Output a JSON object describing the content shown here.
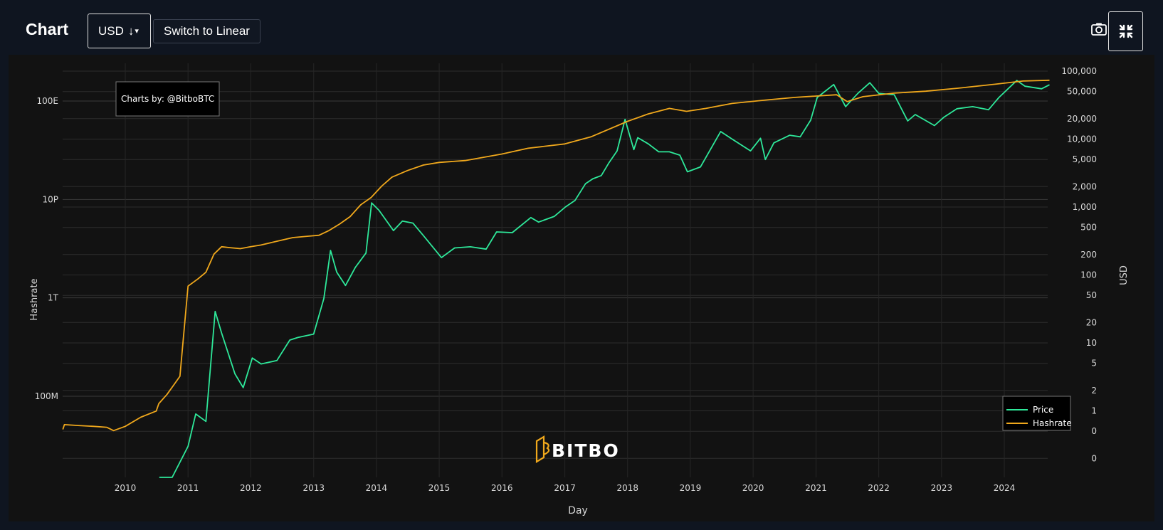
{
  "header": {
    "title": "Chart",
    "currency": "USD",
    "switch_label": "Switch to Linear"
  },
  "icons": {
    "currency_sort": "sort-down-arrow-icon",
    "dropdown": "chevron-down-icon",
    "camera": "camera-icon",
    "fullscreen": "collapse-icon"
  },
  "chart_data": {
    "type": "line",
    "title": "",
    "xlabel": "Day",
    "ylabel_left": "Hashrate",
    "ylabel_right": "USD",
    "y_left_scale": "log",
    "y_right_scale": "log",
    "x_ticks": [
      "2010",
      "2011",
      "2012",
      "2013",
      "2014",
      "2015",
      "2016",
      "2017",
      "2018",
      "2019",
      "2020",
      "2021",
      "2022",
      "2023",
      "2024"
    ],
    "y_left_ticks": [
      "100E",
      "10P",
      "1T",
      "100M"
    ],
    "y_right_ticks": [
      "100,000",
      "50,000",
      "20,000",
      "10,000",
      "5,000",
      "2,000",
      "1,000",
      "500",
      "200",
      "100",
      "50",
      "20",
      "10",
      "5",
      "2",
      "1",
      "0",
      "0"
    ],
    "annotation": "Charts by: @BitboBTC",
    "watermark": "BITBO",
    "legend_position": "bottom-right",
    "grid": true,
    "colors": {
      "price": "#2ee89a",
      "hashrate": "#f0a81c",
      "background": "#121212"
    },
    "series": [
      {
        "name": "Price",
        "axis": "right",
        "x": [
          "2010-07-18",
          "2010-10-01",
          "2011-01-01",
          "2011-02-15",
          "2011-04-15",
          "2011-06-08",
          "2011-07-15",
          "2011-10-01",
          "2011-11-18",
          "2012-01-10",
          "2012-03-01",
          "2012-06-01",
          "2012-08-15",
          "2012-10-01",
          "2013-01-01",
          "2013-03-01",
          "2013-04-09",
          "2013-05-15",
          "2013-07-05",
          "2013-09-01",
          "2013-11-01",
          "2013-12-04",
          "2014-01-15",
          "2014-04-10",
          "2014-06-01",
          "2014-08-01",
          "2014-10-01",
          "2015-01-14",
          "2015-04-01",
          "2015-07-01",
          "2015-10-01",
          "2015-12-01",
          "2016-03-01",
          "2016-06-17",
          "2016-08-01",
          "2016-11-01",
          "2017-01-04",
          "2017-03-01",
          "2017-05-01",
          "2017-06-12",
          "2017-08-01",
          "2017-09-15",
          "2017-11-01",
          "2017-12-17",
          "2018-02-06",
          "2018-03-01",
          "2018-05-01",
          "2018-07-01",
          "2018-09-01",
          "2018-11-01",
          "2018-12-15",
          "2019-03-01",
          "2019-06-26",
          "2019-09-01",
          "2019-12-17",
          "2020-02-13",
          "2020-03-12",
          "2020-05-01",
          "2020-08-01",
          "2020-10-01",
          "2020-12-01",
          "2021-01-08",
          "2021-04-14",
          "2021-06-22",
          "2021-09-01",
          "2021-11-10",
          "2022-01-01",
          "2022-04-01",
          "2022-06-18",
          "2022-08-01",
          "2022-11-21",
          "2023-01-15",
          "2023-04-01",
          "2023-07-01",
          "2023-10-01",
          "2023-12-01",
          "2024-03-14",
          "2024-05-01",
          "2024-08-05",
          "2024-09-20"
        ],
        "values": [
          0.05,
          0.06,
          0.3,
          0.9,
          0.7,
          29,
          14,
          3.5,
          2.2,
          6,
          4.9,
          5.5,
          11,
          12,
          13.5,
          45,
          230,
          110,
          70,
          130,
          210,
          1150,
          900,
          450,
          620,
          580,
          380,
          180,
          250,
          260,
          240,
          430,
          420,
          700,
          600,
          730,
          1000,
          1250,
          2200,
          2600,
          2900,
          4500,
          6700,
          19500,
          7000,
          10500,
          8500,
          6500,
          6500,
          5800,
          3300,
          3900,
          12900,
          10000,
          6700,
          10300,
          5000,
          8800,
          11400,
          10800,
          19000,
          41000,
          63500,
          30000,
          47000,
          67500,
          47000,
          45000,
          18500,
          23000,
          15800,
          21000,
          28000,
          30000,
          27000,
          41000,
          73000,
          60000,
          55000,
          63000
        ]
      },
      {
        "name": "Hashrate",
        "axis": "left",
        "x": [
          "2009-01-03",
          "2009-01-12",
          "2009-04-01",
          "2009-07-01",
          "2009-09-15",
          "2009-10-25",
          "2010-01-01",
          "2010-04-01",
          "2010-06-30",
          "2010-07-15",
          "2010-09-01",
          "2010-10-15",
          "2010-11-15",
          "2011-01-01",
          "2011-03-01",
          "2011-04-15",
          "2011-06-01",
          "2011-07-15",
          "2011-09-01",
          "2011-11-01",
          "2012-01-01",
          "2012-03-01",
          "2012-06-01",
          "2012-09-01",
          "2012-12-01",
          "2013-02-01",
          "2013-04-01",
          "2013-06-01",
          "2013-08-01",
          "2013-10-01",
          "2013-12-01",
          "2014-02-01",
          "2014-04-01",
          "2014-07-01",
          "2014-10-01",
          "2015-01-01",
          "2015-06-01",
          "2016-01-01",
          "2016-06-01",
          "2017-01-01",
          "2017-06-01",
          "2018-01-01",
          "2018-05-01",
          "2018-09-01",
          "2018-12-10",
          "2019-04-01",
          "2019-09-01",
          "2020-03-15",
          "2020-09-01",
          "2021-05-01",
          "2021-07-01",
          "2021-10-01",
          "2022-04-01",
          "2022-10-01",
          "2023-04-01",
          "2023-10-01",
          "2024-04-19",
          "2024-09-20"
        ],
        "values": [
          "4.5M",
          "7M",
          "6.5M",
          "6M",
          "5.5M",
          "4M",
          "6M",
          "14M",
          "25M",
          "50M",
          "120M",
          "320M",
          "650M",
          "3T",
          "6T",
          "11T",
          "60T",
          "120T",
          "110T",
          "100T",
          "120T",
          "140T",
          "200T",
          "280T",
          "320T",
          "350T",
          "550T",
          "1P",
          "2P",
          "6P",
          "12P",
          "35P",
          "80P",
          "150P",
          "250P",
          "320P",
          "380P",
          "700P",
          "1.2E",
          "1.8E",
          "3.5E",
          "15E",
          "30E",
          "50E",
          "38E",
          "50E",
          "80E",
          "110E",
          "140E",
          "180E",
          "95E",
          "150E",
          "210E",
          "250E",
          "330E",
          "450E",
          "650E",
          "700E"
        ]
      }
    ]
  }
}
